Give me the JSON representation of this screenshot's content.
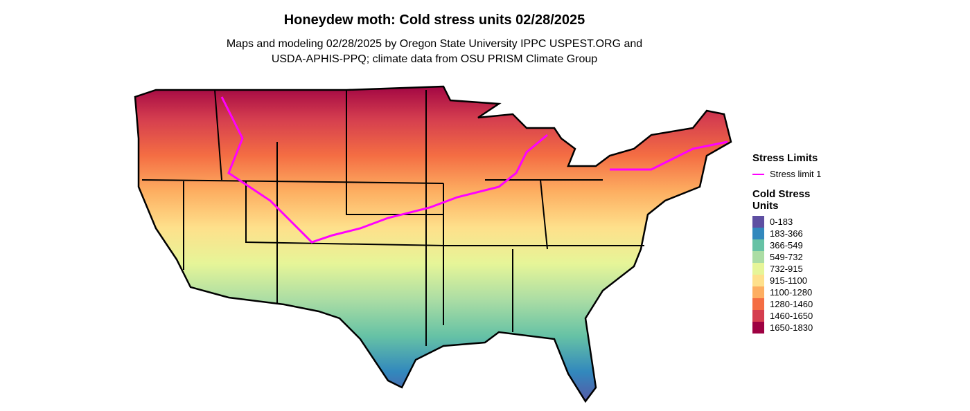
{
  "title": "Honeydew moth: Cold stress units 02/28/2025",
  "subtitle": [
    "Maps and modeling 02/28/2025 by Oregon State University IPPC USPEST.ORG and",
    "USDA-APHIS-PPQ; climate data from OSU PRISM Climate Group"
  ],
  "legend": {
    "limits_title": "Stress Limits",
    "limits": [
      {
        "label": "Stress limit 1",
        "color": "#ff00ff"
      }
    ],
    "units_title": "Cold Stress Units",
    "units": [
      {
        "label": "0-183",
        "color": "#5e4fa2"
      },
      {
        "label": "183-366",
        "color": "#3288bd"
      },
      {
        "label": "366-549",
        "color": "#66c2a5"
      },
      {
        "label": "549-732",
        "color": "#abdda4"
      },
      {
        "label": "732-915",
        "color": "#e6f598"
      },
      {
        "label": "915-1100",
        "color": "#fee08b"
      },
      {
        "label": "1100-1280",
        "color": "#fdae61"
      },
      {
        "label": "1280-1460",
        "color": "#f46d43"
      },
      {
        "label": "1460-1650",
        "color": "#d53e4f"
      },
      {
        "label": "1650-1830",
        "color": "#9e0142"
      }
    ]
  }
}
